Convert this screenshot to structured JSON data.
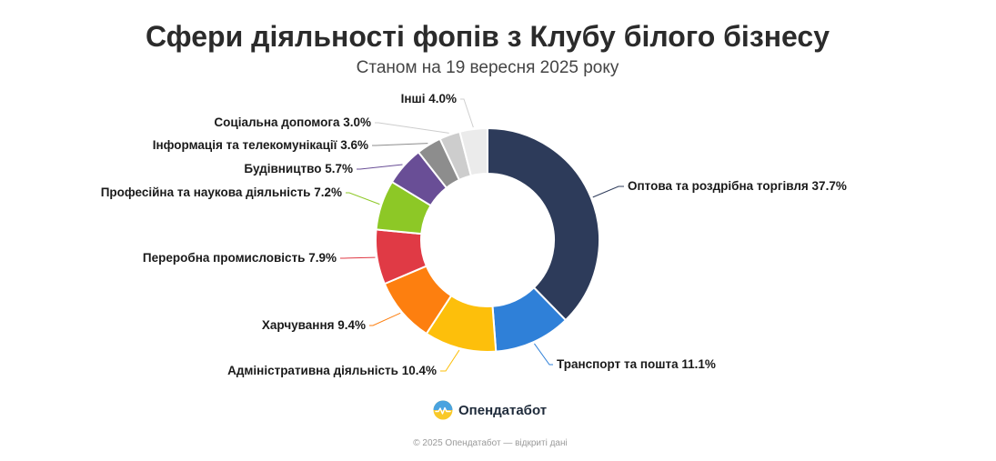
{
  "header": {
    "title": "Сфери діяльності фопів з Клубу білого бізнесу",
    "subtitle": "Станом на 19 вересня 2025 року"
  },
  "chart_data": {
    "type": "pie",
    "variant": "donut",
    "title": "Сфери діяльності фопів з Клубу білого бізнесу",
    "subtitle": "Станом на 19 вересня 2025 року",
    "legend": "none (labels beside segments)",
    "slices": [
      {
        "label": "Оптова та роздрібна торгівля",
        "value": 37.7,
        "value_label": "37.7%",
        "color": "#2d3b5a"
      },
      {
        "label": "Транспорт та пошта",
        "value": 11.1,
        "value_label": "11.1%",
        "color": "#2f80d8"
      },
      {
        "label": "Адміністративна діяльність",
        "value": 10.4,
        "value_label": "10.4%",
        "color": "#fdbf0b"
      },
      {
        "label": "Харчування",
        "value": 9.4,
        "value_label": "9.4%",
        "color": "#fd7f0f"
      },
      {
        "label": "Переробна промисловість",
        "value": 7.9,
        "value_label": "7.9%",
        "color": "#e03a45"
      },
      {
        "label": "Професійна та наукова діяльність",
        "value": 7.2,
        "value_label": "7.2%",
        "color": "#8dc826"
      },
      {
        "label": "Будівництво",
        "value": 5.7,
        "value_label": "5.7%",
        "color": "#694e96"
      },
      {
        "label": "Інформація та телекомунікації",
        "value": 3.6,
        "value_label": "3.6%",
        "color": "#8d8d8d"
      },
      {
        "label": "Соціальна допомога",
        "value": 3.0,
        "value_label": "3.0%",
        "color": "#cdcdcd"
      },
      {
        "label": "Інші",
        "value": 4.0,
        "value_label": "4.0%",
        "color": "#ebebeb"
      }
    ]
  },
  "brand": {
    "name": "Опендатабот",
    "icon": "opendatabot-logo-icon"
  },
  "footer": {
    "text": "© 2025 Опендатабот — відкриті дані"
  }
}
